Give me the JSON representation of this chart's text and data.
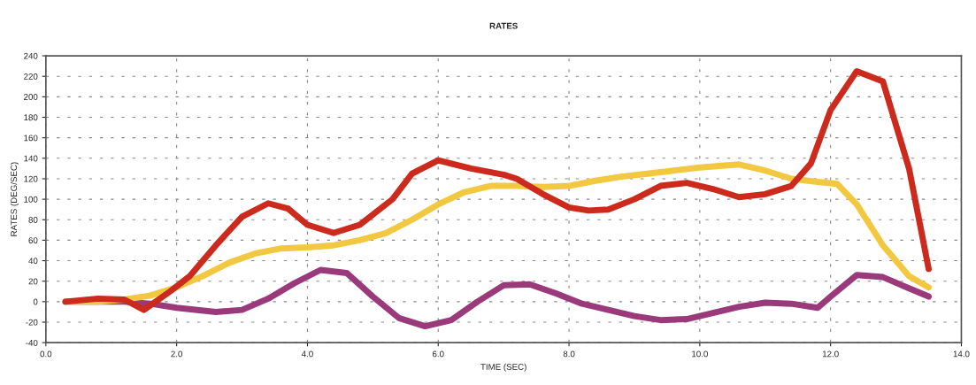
{
  "chart_data": {
    "type": "line",
    "title": "RATES",
    "xlabel": "TIME (SEC)",
    "ylabel": "RATES (DEG/SEC)",
    "xlim": [
      0,
      14
    ],
    "ylim": [
      -40,
      240
    ],
    "xticks": [
      {
        "value": 0,
        "label": "0.0"
      },
      {
        "value": 2,
        "label": "2.0"
      },
      {
        "value": 4,
        "label": "4.0"
      },
      {
        "value": 6,
        "label": "6.0"
      },
      {
        "value": 8,
        "label": "8.0"
      },
      {
        "value": 10,
        "label": "10.0"
      },
      {
        "value": 12,
        "label": "12.0"
      },
      {
        "value": 14,
        "label": "14.0"
      }
    ],
    "yticks": [
      -40,
      -20,
      0,
      20,
      40,
      60,
      80,
      100,
      120,
      140,
      160,
      180,
      200,
      220,
      240
    ],
    "grid": true,
    "marker": "none",
    "line_style": "solid",
    "series": [
      {
        "color": "#9b3a7a",
        "x": [
          0.3,
          1.2,
          1.6,
          2.0,
          2.6,
          3.0,
          3.4,
          3.8,
          4.2,
          4.6,
          5.0,
          5.4,
          5.8,
          6.2,
          6.6,
          7.0,
          7.4,
          7.8,
          8.2,
          8.6,
          9.0,
          9.4,
          9.8,
          10.2,
          10.6,
          11.0,
          11.4,
          11.8,
          12.0,
          12.4,
          12.8,
          13.2,
          13.5
        ],
        "values": [
          0,
          0,
          -2,
          -6,
          -10,
          -8,
          3,
          18,
          31,
          28,
          5,
          -16,
          -24,
          -18,
          0,
          16,
          17,
          8,
          -2,
          -8,
          -14,
          -18,
          -17,
          -11,
          -5,
          -1,
          -2,
          -6,
          5,
          26,
          24,
          13,
          5
        ]
      },
      {
        "color": "#f2c840",
        "x": [
          0.3,
          0.8,
          1.2,
          1.6,
          2.0,
          2.4,
          2.8,
          3.2,
          3.6,
          4.0,
          4.4,
          4.8,
          5.2,
          5.6,
          6.0,
          6.4,
          6.8,
          7.2,
          7.6,
          8.0,
          8.4,
          8.8,
          9.2,
          9.6,
          10.0,
          10.6,
          11.0,
          11.4,
          11.8,
          12.1,
          12.4,
          12.8,
          13.2,
          13.5
        ],
        "values": [
          0,
          0,
          2,
          6,
          14,
          25,
          38,
          47,
          52,
          53,
          55,
          60,
          67,
          80,
          95,
          107,
          113,
          113,
          112,
          113,
          118,
          122,
          125,
          128,
          131,
          134,
          128,
          120,
          117,
          115,
          95,
          55,
          25,
          14
        ]
      },
      {
        "color": "#cc2a1c",
        "x": [
          0.3,
          0.8,
          1.2,
          1.5,
          1.9,
          2.2,
          2.6,
          3.0,
          3.4,
          3.7,
          4.0,
          4.4,
          4.8,
          5.3,
          5.6,
          6.0,
          6.5,
          7.0,
          7.2,
          7.6,
          8.0,
          8.3,
          8.6,
          9.0,
          9.4,
          9.8,
          10.2,
          10.6,
          11.0,
          11.4,
          11.7,
          12.0,
          12.4,
          12.8,
          13.2,
          13.5
        ],
        "values": [
          0,
          3,
          2,
          -8,
          10,
          25,
          55,
          83,
          96,
          91,
          75,
          67,
          75,
          100,
          125,
          138,
          130,
          124,
          120,
          105,
          92,
          89,
          90,
          100,
          113,
          116,
          110,
          102,
          105,
          113,
          135,
          187,
          225,
          215,
          130,
          32
        ]
      }
    ]
  }
}
